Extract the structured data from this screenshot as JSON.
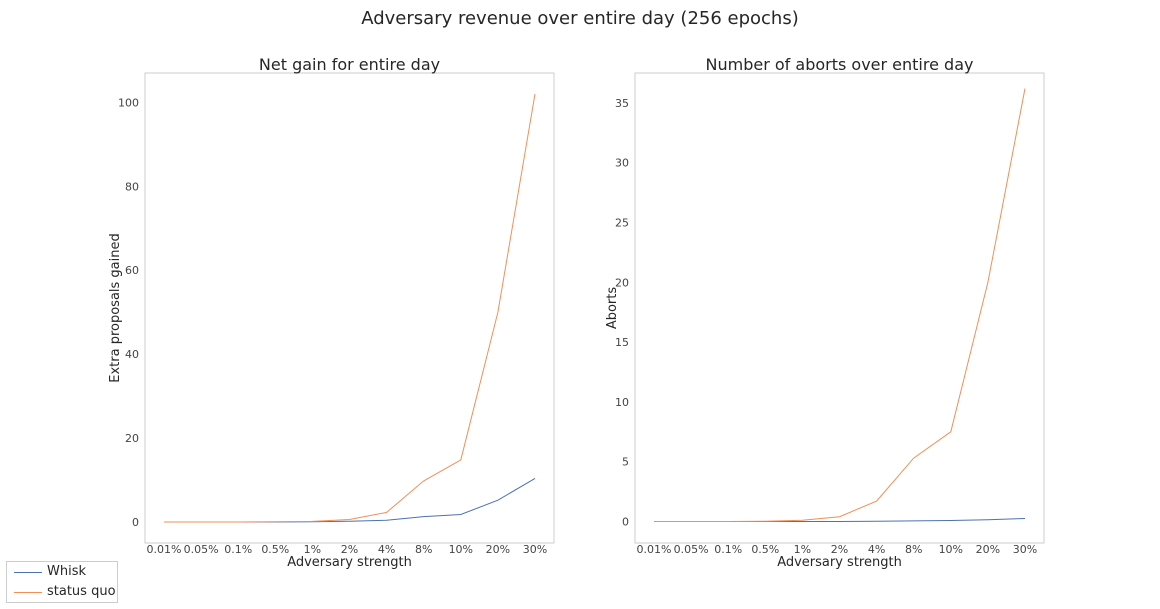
{
  "suptitle": "Adversary revenue over entire day (256 epochs)",
  "colors": {
    "Whisk": "#4c72b0",
    "status quo": "#f28e56"
  },
  "legend": [
    "Whisk",
    "status quo"
  ],
  "chart_data": [
    {
      "type": "line",
      "title": "Net gain for entire day",
      "xlabel": "Adversary strength",
      "ylabel": "Extra proposals gained",
      "categories": [
        "0.01%",
        "0.05%",
        "0.1%",
        "0.5%",
        "1%",
        "2%",
        "4%",
        "8%",
        "10%",
        "20%",
        "30%"
      ],
      "ylim": [
        -5,
        107
      ],
      "yticks": [
        0,
        20,
        40,
        60,
        80,
        100
      ],
      "series": [
        {
          "name": "Whisk",
          "values": [
            0,
            0,
            0,
            0,
            0.05,
            0.2,
            0.4,
            1.3,
            1.8,
            5.2,
            10.4
          ]
        },
        {
          "name": "status quo",
          "values": [
            0,
            0,
            0,
            0.05,
            0.15,
            0.6,
            2.3,
            9.8,
            14.8,
            50,
            102
          ]
        }
      ]
    },
    {
      "type": "line",
      "title": "Number of aborts over entire day",
      "xlabel": "Adversary strength",
      "ylabel": "Aborts",
      "categories": [
        "0.01%",
        "0.05%",
        "0.1%",
        "0.5%",
        "1%",
        "2%",
        "4%",
        "8%",
        "10%",
        "20%",
        "30%"
      ],
      "ylim": [
        -1.8,
        37.5
      ],
      "yticks": [
        0,
        5,
        10,
        15,
        20,
        25,
        30,
        35
      ],
      "series": [
        {
          "name": "Whisk",
          "values": [
            0,
            0,
            0,
            0,
            0,
            0,
            0.02,
            0.05,
            0.08,
            0.15,
            0.25
          ]
        },
        {
          "name": "status quo",
          "values": [
            0,
            0,
            0,
            0.02,
            0.1,
            0.4,
            1.7,
            5.3,
            7.5,
            20,
            36.2
          ]
        }
      ]
    }
  ]
}
